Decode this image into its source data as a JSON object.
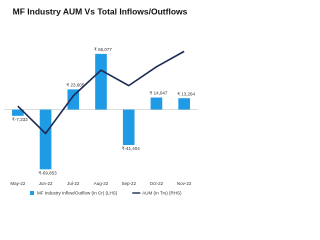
{
  "chart_data": {
    "type": "bar-line",
    "title": "MF Industry AUM Vs Total Inflows/Outflows",
    "categories": [
      "May-22",
      "Jun-22",
      "Jul-22",
      "Aug-22",
      "Sep-22",
      "Oct-22",
      "Nov-22"
    ],
    "series": [
      {
        "name": "MF Industry Inflow/Outflow (In Cr) (LHS)",
        "color": "#1f9be6",
        "type": "bar",
        "values": [
          -7333,
          -69853,
          23605,
          65077,
          -41404,
          14047,
          13264
        ],
        "value_labels": [
          "₹-7,333",
          "₹-69,853",
          "₹ 23,605",
          "₹ 65,077",
          "₹-41,404",
          "₹ 14,047",
          "₹ 13,264"
        ]
      },
      {
        "name": "AUM (In Trs) (RHS)",
        "color": "#1d2b55",
        "type": "line",
        "axis": "y2",
        "values": [
          37.2,
          35.6,
          37.8,
          39.3,
          38.4,
          39.5,
          40.4
        ]
      }
    ],
    "ylim": [
      -80000,
      100000
    ],
    "y2lim": [
      33,
      42
    ]
  }
}
